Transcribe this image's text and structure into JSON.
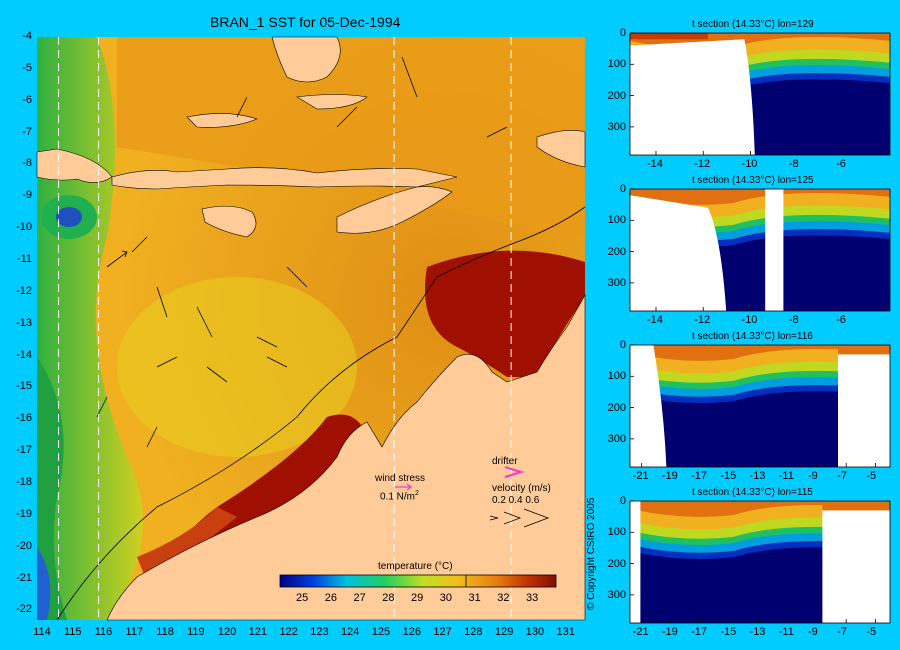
{
  "map": {
    "title": "BRAN_1 SST for 05-Dec-1994",
    "lon_ticks": [
      "114",
      "115",
      "116",
      "117",
      "118",
      "119",
      "120",
      "121",
      "122",
      "123",
      "124",
      "125",
      "126",
      "127",
      "128",
      "129",
      "130",
      "131"
    ],
    "lat_ticks": [
      "-4",
      "-5",
      "-6",
      "-7",
      "-8",
      "-9",
      "-10",
      "-11",
      "-12",
      "-13",
      "-14",
      "-15",
      "-16",
      "-17",
      "-18",
      "-19",
      "-20",
      "-21",
      "-22"
    ],
    "section_lons": [
      114.5,
      115.8,
      125.4,
      129.2
    ],
    "colors": {
      "land": "#ffcc99",
      "frame": "#00ccff",
      "warm": "#a01000",
      "cool": "#0030b0",
      "mid": "#f0a020"
    }
  },
  "colorbar": {
    "title": "temperature (°C)",
    "ticks": [
      "25",
      "26",
      "27",
      "28",
      "29",
      "30",
      "31",
      "32",
      "33"
    ],
    "range": [
      24.2,
      33.8
    ]
  },
  "legend": {
    "wind_stress_label": "wind stress",
    "wind_stress_value": "0.1 N/m",
    "wind_stress_exp": "2",
    "drifter_label": "drifter",
    "velocity_label": "velocity (m/s)",
    "velocity_values": "0.2 0.4 0.6",
    "drifter_color": "#ff33cc"
  },
  "copyright": "© Copyright CSIRO 2005",
  "sections": [
    {
      "title": "t section (14.33°C) lon=129",
      "x_ticks": [
        "-14",
        "-12",
        "-10",
        "-8",
        "-6"
      ],
      "y_ticks": [
        "0",
        "100",
        "200",
        "300"
      ]
    },
    {
      "title": "t section (14.33°C) lon=125",
      "x_ticks": [
        "-14",
        "-12",
        "-10",
        "-8",
        "-6"
      ],
      "y_ticks": [
        "0",
        "100",
        "200",
        "300"
      ]
    },
    {
      "title": "t section (14.33°C) lon=116",
      "x_ticks": [
        "-21",
        "-19",
        "-17",
        "-15",
        "-13",
        "-11",
        "-9",
        "-7",
        "-5"
      ],
      "y_ticks": [
        "0",
        "100",
        "200",
        "300"
      ]
    },
    {
      "title": "t section (14.33°C) lon=115",
      "x_ticks": [
        "-21",
        "-19",
        "-17",
        "-15",
        "-13",
        "-11",
        "-9",
        "-7",
        "-5"
      ],
      "y_ticks": [
        "0",
        "100",
        "200",
        "300"
      ]
    }
  ]
}
